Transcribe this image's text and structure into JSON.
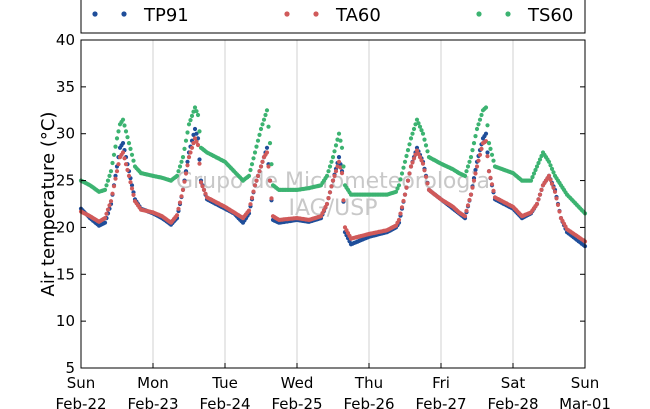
{
  "chart_data": {
    "type": "scatter",
    "title": "",
    "ylabel": "Air temperature (°C)",
    "xlabel": "",
    "ylim": [
      5,
      40
    ],
    "yticks": [
      5,
      10,
      15,
      20,
      25,
      30,
      35,
      40
    ],
    "xlim": [
      "2015-02-22",
      "2015-03-01"
    ],
    "xticks": [
      {
        "day": "Sun",
        "date": "Feb-22"
      },
      {
        "day": "Mon",
        "date": "Feb-23"
      },
      {
        "day": "Tue",
        "date": "Feb-24"
      },
      {
        "day": "Wed",
        "date": "Feb-25"
      },
      {
        "day": "Thu",
        "date": "Feb-26"
      },
      {
        "day": "Fri",
        "date": "Feb-27"
      },
      {
        "day": "Sat",
        "date": "Feb-28"
      },
      {
        "day": "Sun",
        "date": "Mar-01"
      }
    ],
    "grid": "vertical",
    "legend_position": "top",
    "watermark": [
      "Grupo de Micrometeorologia",
      "IAG/USP"
    ],
    "series": [
      {
        "name": "TP91",
        "color": "#1f4e9a",
        "points": [
          [
            "2015-02-22 00:00",
            22.0
          ],
          [
            "2015-02-22 03:00",
            21.0
          ],
          [
            "2015-02-22 06:00",
            20.2
          ],
          [
            "2015-02-22 08:00",
            20.5
          ],
          [
            "2015-02-22 10:00",
            22.5
          ],
          [
            "2015-02-22 12:00",
            26.5
          ],
          [
            "2015-02-22 13:00",
            28.5
          ],
          [
            "2015-02-22 14:00",
            29.0
          ],
          [
            "2015-02-22 16:00",
            26.0
          ],
          [
            "2015-02-22 18:00",
            23.0
          ],
          [
            "2015-02-22 20:00",
            22.0
          ],
          [
            "2015-02-23 00:00",
            21.5
          ],
          [
            "2015-02-23 03:00",
            21.0
          ],
          [
            "2015-02-23 06:00",
            20.3
          ],
          [
            "2015-02-23 08:00",
            21.0
          ],
          [
            "2015-02-23 10:00",
            24.0
          ],
          [
            "2015-02-23 12:00",
            28.0
          ],
          [
            "2015-02-23 14:00",
            30.5
          ],
          [
            "2015-02-23 15:00",
            29.5
          ],
          [
            "2015-02-23 16:00",
            25.0
          ],
          [
            "2015-02-23 18:00",
            23.0
          ],
          [
            "2015-02-24 00:00",
            22.0
          ],
          [
            "2015-02-24 03:00",
            21.5
          ],
          [
            "2015-02-24 06:00",
            20.5
          ],
          [
            "2015-02-24 08:00",
            21.5
          ],
          [
            "2015-02-24 10:00",
            24.5
          ],
          [
            "2015-02-24 12:00",
            26.5
          ],
          [
            "2015-02-24 13:00",
            27.5
          ],
          [
            "2015-02-24 14:00",
            28.5
          ],
          [
            "2015-02-24 15:00",
            25.0
          ],
          [
            "2015-02-24 16:00",
            20.8
          ],
          [
            "2015-02-24 18:00",
            20.5
          ],
          [
            "2015-02-25 00:00",
            20.8
          ],
          [
            "2015-02-25 04:00",
            20.6
          ],
          [
            "2015-02-25 08:00",
            21.0
          ],
          [
            "2015-02-25 10:00",
            22.5
          ],
          [
            "2015-02-25 12:00",
            25.0
          ],
          [
            "2015-02-25 14:00",
            27.5
          ],
          [
            "2015-02-25 15:00",
            26.0
          ],
          [
            "2015-02-25 16:00",
            19.5
          ],
          [
            "2015-02-25 18:00",
            18.2
          ],
          [
            "2015-02-26 00:00",
            19.0
          ],
          [
            "2015-02-26 06:00",
            19.5
          ],
          [
            "2015-02-26 09:00",
            20.0
          ],
          [
            "2015-02-26 10:00",
            20.5
          ],
          [
            "2015-02-26 12:00",
            23.5
          ],
          [
            "2015-02-26 14:00",
            26.5
          ],
          [
            "2015-02-26 16:00",
            28.5
          ],
          [
            "2015-02-26 18:00",
            27.0
          ],
          [
            "2015-02-26 20:00",
            24.0
          ],
          [
            "2015-02-27 00:00",
            23.0
          ],
          [
            "2015-02-27 04:00",
            22.0
          ],
          [
            "2015-02-27 06:00",
            21.5
          ],
          [
            "2015-02-27 08:00",
            21.0
          ],
          [
            "2015-02-27 10:00",
            23.5
          ],
          [
            "2015-02-27 12:00",
            27.0
          ],
          [
            "2015-02-27 14:00",
            29.5
          ],
          [
            "2015-02-27 15:00",
            30.0
          ],
          [
            "2015-02-27 16:00",
            26.0
          ],
          [
            "2015-02-27 18:00",
            23.0
          ],
          [
            "2015-02-28 00:00",
            22.0
          ],
          [
            "2015-02-28 03:00",
            21.0
          ],
          [
            "2015-02-28 06:00",
            21.5
          ],
          [
            "2015-02-28 08:00",
            22.5
          ],
          [
            "2015-02-28 10:00",
            24.5
          ],
          [
            "2015-02-28 12:00",
            25.5
          ],
          [
            "2015-02-28 14:00",
            24.0
          ],
          [
            "2015-02-28 16:00",
            21.0
          ],
          [
            "2015-02-28 18:00",
            19.5
          ],
          [
            "2015-03-01 00:00",
            18.0
          ]
        ]
      },
      {
        "name": "TA60",
        "color": "#d05a5a",
        "points": [
          [
            "2015-02-22 00:00",
            21.7
          ],
          [
            "2015-02-22 03:00",
            21.2
          ],
          [
            "2015-02-22 06:00",
            20.6
          ],
          [
            "2015-02-22 08:00",
            21.0
          ],
          [
            "2015-02-22 10:00",
            22.8
          ],
          [
            "2015-02-22 12:00",
            26.0
          ],
          [
            "2015-02-22 13:00",
            27.5
          ],
          [
            "2015-02-22 14:00",
            28.0
          ],
          [
            "2015-02-22 16:00",
            25.5
          ],
          [
            "2015-02-22 18:00",
            22.8
          ],
          [
            "2015-02-22 20:00",
            21.9
          ],
          [
            "2015-02-23 00:00",
            21.6
          ],
          [
            "2015-02-23 03:00",
            21.2
          ],
          [
            "2015-02-23 06:00",
            20.5
          ],
          [
            "2015-02-23 08:00",
            21.3
          ],
          [
            "2015-02-23 10:00",
            24.0
          ],
          [
            "2015-02-23 12:00",
            27.5
          ],
          [
            "2015-02-23 14:00",
            29.5
          ],
          [
            "2015-02-23 15:00",
            28.8
          ],
          [
            "2015-02-23 16:00",
            24.8
          ],
          [
            "2015-02-23 18:00",
            23.2
          ],
          [
            "2015-02-24 00:00",
            22.2
          ],
          [
            "2015-02-24 03:00",
            21.6
          ],
          [
            "2015-02-24 06:00",
            21.0
          ],
          [
            "2015-02-24 08:00",
            21.8
          ],
          [
            "2015-02-24 10:00",
            24.5
          ],
          [
            "2015-02-24 12:00",
            26.5
          ],
          [
            "2015-02-24 13:00",
            27.5
          ],
          [
            "2015-02-24 14:00",
            28.0
          ],
          [
            "2015-02-24 15:00",
            25.0
          ],
          [
            "2015-02-24 16:00",
            21.2
          ],
          [
            "2015-02-24 18:00",
            20.8
          ],
          [
            "2015-02-25 00:00",
            21.0
          ],
          [
            "2015-02-25 04:00",
            20.8
          ],
          [
            "2015-02-25 08:00",
            21.2
          ],
          [
            "2015-02-25 10:00",
            22.5
          ],
          [
            "2015-02-25 12:00",
            25.0
          ],
          [
            "2015-02-25 14:00",
            27.0
          ],
          [
            "2015-02-25 15:00",
            25.8
          ],
          [
            "2015-02-25 16:00",
            20.0
          ],
          [
            "2015-02-25 18:00",
            18.8
          ],
          [
            "2015-02-26 00:00",
            19.3
          ],
          [
            "2015-02-26 06:00",
            19.7
          ],
          [
            "2015-02-26 09:00",
            20.2
          ],
          [
            "2015-02-26 10:00",
            20.8
          ],
          [
            "2015-02-26 12:00",
            23.5
          ],
          [
            "2015-02-26 14:00",
            26.5
          ],
          [
            "2015-02-26 16:00",
            28.2
          ],
          [
            "2015-02-26 18:00",
            26.8
          ],
          [
            "2015-02-26 20:00",
            24.0
          ],
          [
            "2015-02-27 00:00",
            23.0
          ],
          [
            "2015-02-27 04:00",
            22.2
          ],
          [
            "2015-02-27 06:00",
            21.6
          ],
          [
            "2015-02-27 08:00",
            21.2
          ],
          [
            "2015-02-27 10:00",
            23.5
          ],
          [
            "2015-02-27 12:00",
            26.5
          ],
          [
            "2015-02-27 14:00",
            29.0
          ],
          [
            "2015-02-27 15:00",
            29.2
          ],
          [
            "2015-02-27 16:00",
            26.0
          ],
          [
            "2015-02-27 18:00",
            23.2
          ],
          [
            "2015-02-28 00:00",
            22.2
          ],
          [
            "2015-02-28 03:00",
            21.2
          ],
          [
            "2015-02-28 06:00",
            21.6
          ],
          [
            "2015-02-28 08:00",
            22.5
          ],
          [
            "2015-02-28 10:00",
            24.5
          ],
          [
            "2015-02-28 12:00",
            25.5
          ],
          [
            "2015-02-28 14:00",
            23.8
          ],
          [
            "2015-02-28 16:00",
            21.0
          ],
          [
            "2015-02-28 18:00",
            19.8
          ],
          [
            "2015-03-01 00:00",
            18.5
          ]
        ]
      },
      {
        "name": "TS60",
        "color": "#3cb371",
        "points": [
          [
            "2015-02-22 00:00",
            25.0
          ],
          [
            "2015-02-22 03:00",
            24.5
          ],
          [
            "2015-02-22 06:00",
            23.8
          ],
          [
            "2015-02-22 08:00",
            24.0
          ],
          [
            "2015-02-22 10:00",
            26.0
          ],
          [
            "2015-02-22 12:00",
            29.5
          ],
          [
            "2015-02-22 13:00",
            31.0
          ],
          [
            "2015-02-22 14:00",
            31.5
          ],
          [
            "2015-02-22 16:00",
            29.0
          ],
          [
            "2015-02-22 18:00",
            26.5
          ],
          [
            "2015-02-22 20:00",
            25.8
          ],
          [
            "2015-02-23 00:00",
            25.5
          ],
          [
            "2015-02-23 03:00",
            25.3
          ],
          [
            "2015-02-23 06:00",
            25.0
          ],
          [
            "2015-02-23 08:00",
            25.5
          ],
          [
            "2015-02-23 10:00",
            27.5
          ],
          [
            "2015-02-23 12:00",
            31.0
          ],
          [
            "2015-02-23 14:00",
            32.8
          ],
          [
            "2015-02-23 15:00",
            32.0
          ],
          [
            "2015-02-23 16:00",
            28.5
          ],
          [
            "2015-02-23 18:00",
            28.0
          ],
          [
            "2015-02-24 00:00",
            27.0
          ],
          [
            "2015-02-24 03:00",
            26.0
          ],
          [
            "2015-02-24 06:00",
            25.0
          ],
          [
            "2015-02-24 08:00",
            25.5
          ],
          [
            "2015-02-24 10:00",
            28.0
          ],
          [
            "2015-02-24 12:00",
            30.5
          ],
          [
            "2015-02-24 13:00",
            31.5
          ],
          [
            "2015-02-24 14:00",
            32.5
          ],
          [
            "2015-02-24 15:00",
            29.0
          ],
          [
            "2015-02-24 16:00",
            24.5
          ],
          [
            "2015-02-24 18:00",
            24.0
          ],
          [
            "2015-02-25 00:00",
            24.0
          ],
          [
            "2015-02-25 04:00",
            24.2
          ],
          [
            "2015-02-25 08:00",
            24.5
          ],
          [
            "2015-02-25 10:00",
            25.5
          ],
          [
            "2015-02-25 12:00",
            27.5
          ],
          [
            "2015-02-25 14:00",
            30.0
          ],
          [
            "2015-02-25 15:00",
            28.5
          ],
          [
            "2015-02-25 16:00",
            24.5
          ],
          [
            "2015-02-25 18:00",
            23.5
          ],
          [
            "2015-02-26 00:00",
            23.5
          ],
          [
            "2015-02-26 06:00",
            23.5
          ],
          [
            "2015-02-26 09:00",
            23.8
          ],
          [
            "2015-02-26 10:00",
            24.5
          ],
          [
            "2015-02-26 12:00",
            27.0
          ],
          [
            "2015-02-26 14:00",
            29.5
          ],
          [
            "2015-02-26 16:00",
            31.5
          ],
          [
            "2015-02-26 18:00",
            30.0
          ],
          [
            "2015-02-26 20:00",
            27.5
          ],
          [
            "2015-02-27 00:00",
            26.8
          ],
          [
            "2015-02-27 04:00",
            26.2
          ],
          [
            "2015-02-27 06:00",
            25.8
          ],
          [
            "2015-02-27 08:00",
            25.5
          ],
          [
            "2015-02-27 10:00",
            27.5
          ],
          [
            "2015-02-27 12:00",
            30.5
          ],
          [
            "2015-02-27 14:00",
            32.5
          ],
          [
            "2015-02-27 15:00",
            32.8
          ],
          [
            "2015-02-27 16:00",
            29.0
          ],
          [
            "2015-02-27 18:00",
            26.5
          ],
          [
            "2015-02-28 00:00",
            25.8
          ],
          [
            "2015-02-28 03:00",
            25.0
          ],
          [
            "2015-02-28 06:00",
            25.0
          ],
          [
            "2015-02-28 08:00",
            26.5
          ],
          [
            "2015-02-28 10:00",
            28.0
          ],
          [
            "2015-02-28 12:00",
            27.0
          ],
          [
            "2015-02-28 14:00",
            25.5
          ],
          [
            "2015-02-28 16:00",
            24.5
          ],
          [
            "2015-02-28 18:00",
            23.5
          ],
          [
            "2015-03-01 00:00",
            21.5
          ]
        ]
      }
    ]
  }
}
